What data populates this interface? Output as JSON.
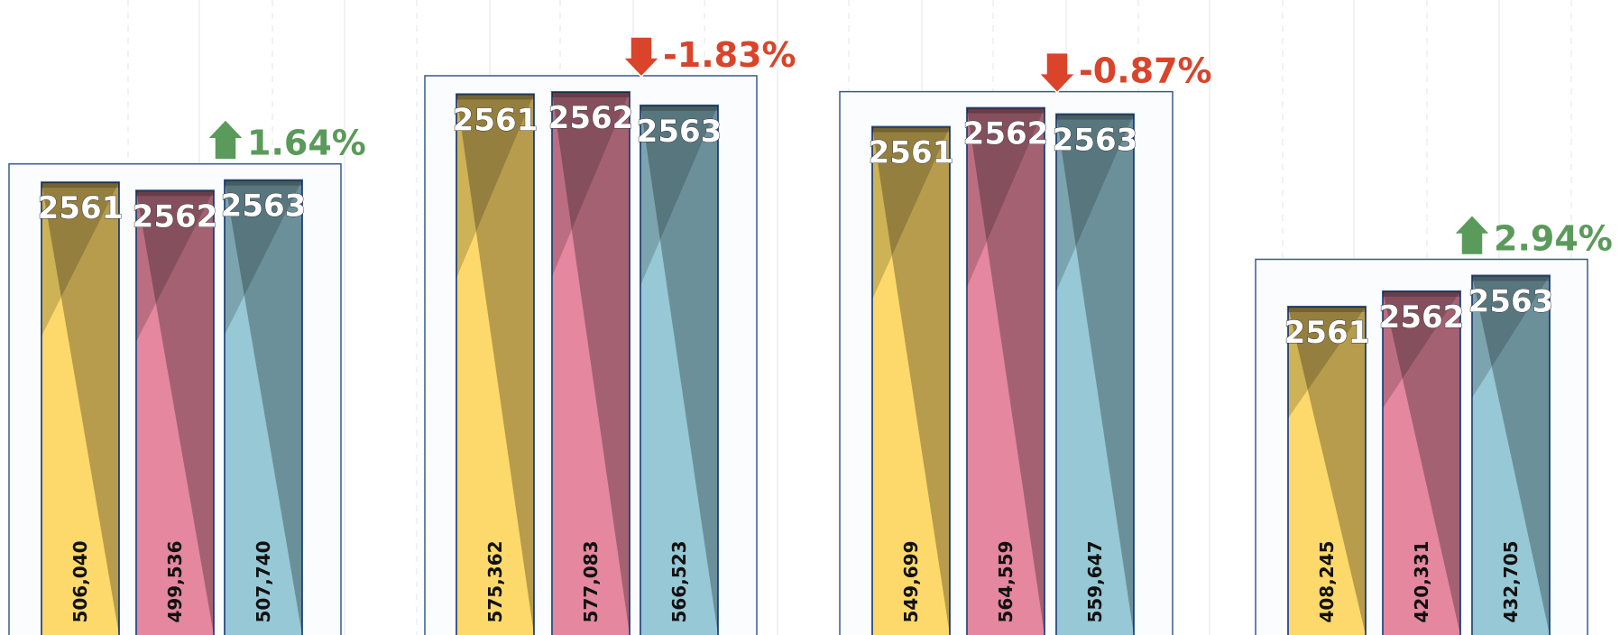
{
  "chart_data": {
    "type": "bar",
    "series_names": [
      "2561",
      "2562",
      "2563"
    ],
    "groups": [
      {
        "values": [
          506040,
          499536,
          507740
        ],
        "change": "1.64%",
        "direction": "up"
      },
      {
        "values": [
          575362,
          577083,
          566523
        ],
        "change": "-1.83%",
        "direction": "down"
      },
      {
        "values": [
          549699,
          564559,
          559647
        ],
        "change": "-0.87%",
        "direction": "down"
      },
      {
        "values": [
          408245,
          420331,
          432705
        ],
        "change": "2.94%",
        "direction": "up"
      }
    ],
    "value_labels": [
      [
        "506,040",
        "499,536",
        "507,740"
      ],
      [
        "575,362",
        "577,083",
        "566,523"
      ],
      [
        "549,699",
        "564,559",
        "559,647"
      ],
      [
        "408,245",
        "420,331",
        "432,705"
      ]
    ],
    "ylim": [
      0,
      650000
    ],
    "grid": true,
    "colors": {
      "series": [
        "#fcd96a",
        "#e4879f",
        "#96c8d6"
      ],
      "up": "#5a9a5a",
      "down": "#d9442b",
      "frame": "#3a5a8c"
    },
    "icons": {
      "up": "arrow-up-icon",
      "down": "arrow-down-icon"
    }
  }
}
